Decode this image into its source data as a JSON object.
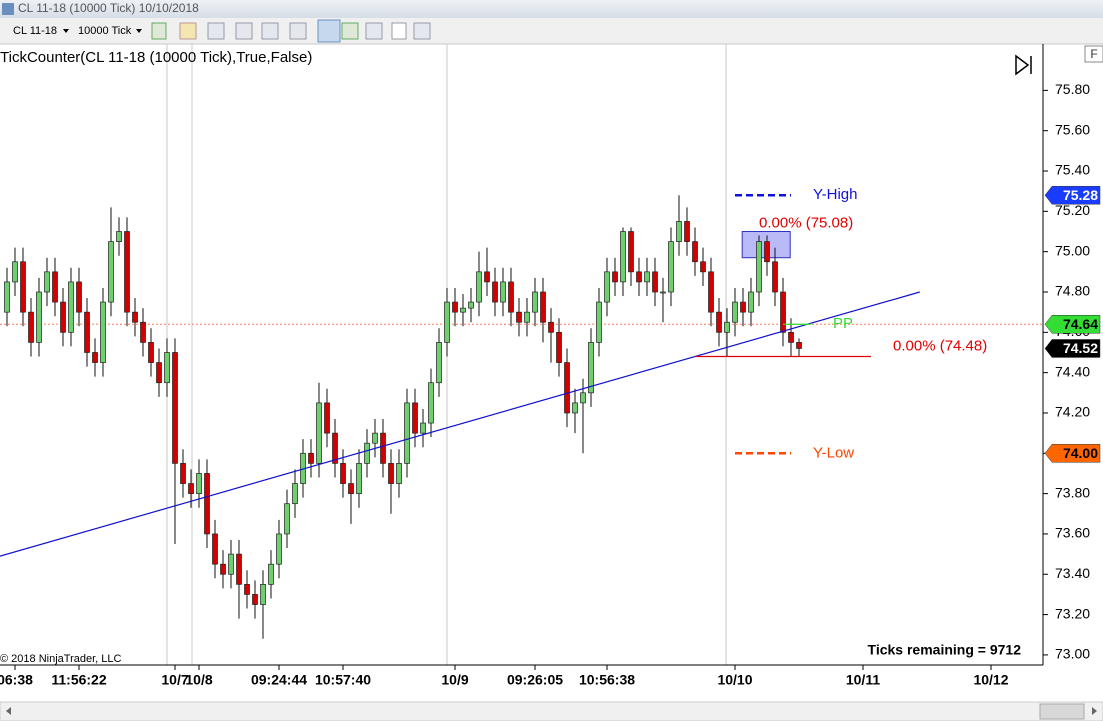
{
  "window": {
    "title": "CL 11-18 (10000 Tick)  10/10/2018"
  },
  "toolbar": {
    "instrument": "CL 11-18",
    "interval": "10000 Tick"
  },
  "chart_data": {
    "type": "candlestick",
    "indicator_label": "TickCounter(CL 11-18 (10000 Tick),True,False)",
    "ticks_remaining": "Ticks remaining = 9712",
    "copyright": "© 2018 NinjaTrader, LLC",
    "up_color": "#6fcf6f",
    "down_color": "#d40000",
    "open": [
      74.7,
      74.85,
      74.95,
      74.7,
      74.55,
      74.8,
      74.9,
      74.75,
      74.6,
      74.85,
      74.7,
      74.5,
      74.45,
      74.75,
      75.05,
      75.1,
      74.7,
      74.65,
      74.55,
      74.45,
      74.35,
      74.5,
      73.95,
      73.85,
      73.8,
      73.9,
      73.6,
      73.45,
      73.4,
      73.5,
      73.35,
      73.3,
      73.25,
      73.35,
      73.45,
      73.6,
      73.75,
      73.85,
      74.0,
      73.95,
      74.25,
      74.1,
      73.95,
      73.85,
      73.8,
      73.95,
      74.05,
      74.1,
      73.95,
      73.85,
      73.95,
      74.25,
      74.1,
      74.15,
      74.35,
      74.55,
      74.75,
      74.7,
      74.72,
      74.75,
      74.9,
      74.85,
      74.75,
      74.85,
      74.7,
      74.65,
      74.7,
      74.8,
      74.65,
      74.6,
      74.45,
      74.2,
      74.25,
      74.3,
      74.55,
      74.75,
      74.9,
      74.85,
      75.1,
      74.9,
      74.85,
      74.9,
      74.8,
      74.8,
      75.05,
      75.15,
      75.05,
      74.95,
      74.9,
      74.7,
      74.6,
      74.65,
      74.75,
      74.7,
      74.8,
      75.05,
      74.95,
      74.8,
      74.6,
      74.55
    ],
    "high": [
      74.92,
      75.02,
      75.02,
      74.77,
      74.87,
      74.97,
      74.97,
      74.82,
      74.92,
      74.92,
      74.77,
      74.57,
      74.82,
      75.22,
      75.17,
      75.17,
      74.77,
      74.72,
      74.62,
      74.52,
      74.57,
      74.57,
      74.02,
      73.92,
      73.97,
      73.97,
      73.67,
      73.52,
      73.57,
      73.57,
      73.42,
      73.37,
      73.42,
      73.52,
      73.67,
      73.82,
      73.92,
      74.07,
      74.07,
      74.35,
      74.32,
      74.17,
      74.02,
      73.92,
      74.02,
      74.12,
      74.17,
      74.17,
      74.02,
      74.02,
      74.32,
      74.32,
      74.22,
      74.42,
      74.62,
      74.82,
      74.82,
      74.79,
      74.82,
      75.0,
      75.02,
      74.92,
      74.92,
      74.92,
      74.77,
      74.77,
      74.87,
      74.87,
      74.72,
      74.67,
      74.52,
      74.32,
      74.37,
      74.62,
      74.82,
      74.97,
      74.97,
      75.12,
      75.12,
      74.97,
      74.97,
      74.97,
      74.87,
      75.12,
      75.28,
      75.22,
      75.12,
      75.02,
      74.97,
      74.77,
      74.72,
      74.82,
      74.82,
      74.87,
      75.08,
      75.08,
      75.02,
      74.87,
      74.67,
      74.57
    ],
    "low": [
      74.63,
      74.78,
      74.63,
      74.48,
      74.48,
      74.73,
      74.68,
      74.53,
      74.53,
      74.63,
      74.43,
      74.38,
      74.38,
      74.68,
      74.98,
      74.63,
      74.58,
      74.48,
      74.38,
      74.28,
      74.28,
      73.55,
      73.78,
      73.73,
      73.73,
      73.53,
      73.38,
      73.33,
      73.33,
      73.18,
      73.23,
      73.18,
      73.08,
      73.28,
      73.38,
      73.53,
      73.68,
      73.78,
      73.88,
      73.88,
      74.03,
      73.88,
      73.78,
      73.65,
      73.73,
      73.88,
      73.98,
      73.88,
      73.7,
      73.78,
      73.88,
      74.03,
      74.03,
      74.08,
      74.28,
      74.48,
      74.63,
      74.63,
      74.65,
      74.68,
      74.78,
      74.68,
      74.68,
      74.63,
      74.58,
      74.58,
      74.63,
      74.55,
      74.45,
      74.38,
      74.13,
      74.1,
      74.0,
      74.23,
      74.48,
      74.68,
      74.78,
      74.78,
      74.83,
      74.78,
      74.78,
      74.73,
      74.65,
      74.73,
      74.98,
      74.98,
      74.88,
      74.83,
      74.63,
      74.53,
      74.48,
      74.58,
      74.63,
      74.63,
      74.73,
      74.88,
      74.73,
      74.53,
      74.48,
      74.48
    ],
    "close": [
      74.85,
      74.95,
      74.7,
      74.55,
      74.8,
      74.9,
      74.75,
      74.6,
      74.85,
      74.7,
      74.5,
      74.45,
      74.75,
      75.05,
      75.1,
      74.7,
      74.65,
      74.55,
      74.45,
      74.35,
      74.5,
      73.95,
      73.85,
      73.8,
      73.9,
      73.6,
      73.45,
      73.4,
      73.5,
      73.35,
      73.3,
      73.25,
      73.35,
      73.45,
      73.6,
      73.75,
      73.85,
      74.0,
      73.95,
      74.25,
      74.1,
      73.95,
      73.85,
      73.8,
      73.95,
      74.05,
      74.1,
      73.95,
      73.85,
      73.95,
      74.25,
      74.1,
      74.15,
      74.35,
      74.55,
      74.75,
      74.7,
      74.72,
      74.75,
      74.9,
      74.85,
      74.75,
      74.85,
      74.7,
      74.65,
      74.7,
      74.8,
      74.65,
      74.6,
      74.45,
      74.2,
      74.25,
      74.3,
      74.55,
      74.75,
      74.9,
      74.85,
      75.1,
      74.9,
      74.85,
      74.9,
      74.8,
      74.8,
      75.05,
      75.15,
      75.05,
      74.95,
      74.9,
      74.7,
      74.6,
      74.65,
      74.75,
      74.7,
      74.8,
      75.05,
      74.95,
      74.8,
      74.6,
      74.55,
      74.52
    ],
    "xlim": [
      -0.875,
      129.5
    ],
    "xticks": [
      {
        "value": 1,
        "label": "06:38"
      },
      {
        "value": 9,
        "label": "11:56:22"
      },
      {
        "value": 21,
        "label": "10/7"
      },
      {
        "value": 24,
        "label": "10/8"
      },
      {
        "value": 34,
        "label": "09:24:44"
      },
      {
        "value": 42,
        "label": "10:57:40"
      },
      {
        "value": 56,
        "label": "10/9"
      },
      {
        "value": 66,
        "label": "09:26:05"
      },
      {
        "value": 75,
        "label": "10:56:38"
      },
      {
        "value": 91,
        "label": "10/10"
      },
      {
        "value": 107,
        "label": "10/11"
      },
      {
        "value": 123,
        "label": "10/12"
      }
    ],
    "ylim": [
      72.95,
      76.03
    ],
    "yticks": [
      {
        "value": 73.0,
        "label": "73.00"
      },
      {
        "value": 73.2,
        "label": "73.20"
      },
      {
        "value": 73.4,
        "label": "73.40"
      },
      {
        "value": 73.6,
        "label": "73.60"
      },
      {
        "value": 73.8,
        "label": "73.80"
      },
      {
        "value": 74.0,
        "label": "74.00"
      },
      {
        "value": 74.2,
        "label": "74.20"
      },
      {
        "value": 74.4,
        "label": "74.40"
      },
      {
        "value": 74.6,
        "label": "74.60"
      },
      {
        "value": 74.8,
        "label": "74.80"
      },
      {
        "value": 75.0,
        "label": "75.00"
      },
      {
        "value": 75.2,
        "label": "75.20"
      },
      {
        "value": 75.4,
        "label": "75.40"
      },
      {
        "value": 75.6,
        "label": "75.60"
      },
      {
        "value": 75.8,
        "label": "75.80"
      }
    ],
    "trendline": {
      "x": [
        -0.875,
        114.1
      ],
      "y": [
        73.49,
        74.8
      ],
      "color": "#1010d0"
    },
    "zone": {
      "x": [
        91.9,
        97.9
      ],
      "y": [
        74.97,
        75.1
      ],
      "color": "#8c8cf0"
    },
    "annotations": [
      {
        "text": "Y-High",
        "value": 75.28,
        "color": "#1010e0",
        "style": "dashed",
        "x": [
          91,
          98
        ]
      },
      {
        "text": "Y-Low",
        "value": 74.0,
        "color": "#ff4500",
        "style": "dashed",
        "x": [
          91,
          98
        ]
      },
      {
        "text": "PP",
        "value": 74.64,
        "color": "#33dd33",
        "style": "solid",
        "x": [
          97,
          100.5
        ]
      },
      {
        "text": "0.00% (74.48)",
        "value": 74.48,
        "color": "#e00000",
        "style": "solid",
        "x": [
          86,
          108
        ]
      },
      {
        "text": "0.00% (75.08)",
        "value": 75.08,
        "color": "#e00000",
        "style": "none",
        "x": [
          94,
          94
        ]
      }
    ],
    "price_markers": [
      {
        "value": 75.28,
        "label": "75.28",
        "color": "#1a3cff",
        "text_color": "#ffffff"
      },
      {
        "value": 74.64,
        "label": "74.64",
        "color": "#33dd33",
        "text_color": "#000000",
        "line_color": "#ff7f50"
      },
      {
        "value": 74.52,
        "label": "74.52",
        "color": "#000000",
        "text_color": "#ffffff"
      },
      {
        "value": 74.0,
        "label": "74.00",
        "color": "#ff6600",
        "text_color": "#000000"
      }
    ]
  }
}
